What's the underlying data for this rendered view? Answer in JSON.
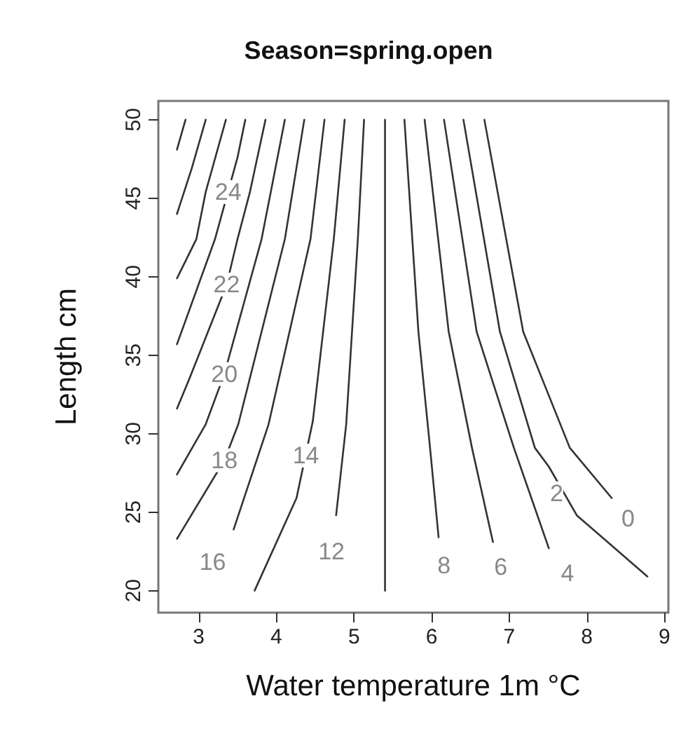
{
  "chart_data": {
    "type": "line",
    "title": "Season=spring.open",
    "xlabel": "Water temperature 1m °C",
    "ylabel": "Length cm",
    "xlim": [
      2.48,
      9.05
    ],
    "xticks": [
      3,
      4,
      5,
      6,
      7,
      8,
      9
    ],
    "ylim": [
      18.6,
      51.2
    ],
    "yticks": [
      20,
      25,
      30,
      35,
      40,
      45,
      50
    ],
    "series": [
      {
        "color": "#333333",
        "x": [
          2.83,
          2.72
        ],
        "values": [
          50,
          48.1
        ]
      },
      {
        "color": "#333333",
        "x": [
          3.09,
          2.91,
          2.72
        ],
        "values": [
          50,
          46.9,
          44.0
        ]
      },
      {
        "color": "#333333",
        "x": [
          3.35,
          3.09,
          2.97,
          2.72
        ],
        "values": [
          50,
          45.4,
          42.4,
          39.9
        ]
      },
      {
        "color": "#333333",
        "x": [
          3.6,
          3.5,
          3.21,
          2.72
        ],
        "values": [
          50,
          47.6,
          42.4,
          35.7
        ]
      },
      {
        "color": "#333333",
        "x": [
          3.86,
          3.66,
          3.5,
          3.36,
          2.88,
          2.72
        ],
        "values": [
          50,
          45.4,
          42.4,
          39.5,
          33.5,
          31.6
        ]
      },
      {
        "color": "#333333",
        "x": [
          4.11,
          3.81,
          3.33,
          3.09,
          2.72
        ],
        "values": [
          50,
          42.4,
          33.8,
          30.6,
          27.4
        ]
      },
      {
        "color": "#333333",
        "x": [
          4.36,
          4.11,
          3.51,
          3.33,
          2.72
        ],
        "values": [
          50,
          42.4,
          30.6,
          28.3,
          23.3
        ]
      },
      {
        "color": "#333333",
        "x": [
          4.62,
          4.44,
          3.9,
          3.45
        ],
        "values": [
          50,
          42.4,
          30.6,
          23.9
        ]
      },
      {
        "color": "#333333",
        "x": [
          4.88,
          4.74,
          4.47,
          4.26,
          3.72
        ],
        "values": [
          50,
          42.4,
          30.8,
          25.9,
          20
        ]
      },
      {
        "color": "#333333",
        "x": [
          5.13,
          5.05,
          4.9,
          4.77
        ],
        "values": [
          50,
          42.4,
          30.6,
          24.8
        ]
      },
      {
        "color": "#333333",
        "x": [
          5.4,
          5.4
        ],
        "values": [
          50,
          20
        ]
      },
      {
        "color": "#333333",
        "x": [
          5.65,
          5.83,
          5.98,
          6.09
        ],
        "values": [
          50,
          36.5,
          29.1,
          23.4
        ]
      },
      {
        "color": "#333333",
        "x": [
          5.91,
          6.22,
          6.52,
          6.79
        ],
        "values": [
          50,
          36.5,
          29.1,
          23.1
        ]
      },
      {
        "color": "#333333",
        "x": [
          6.16,
          6.58,
          7.06,
          7.51
        ],
        "values": [
          50,
          36.5,
          29.1,
          22.7
        ]
      },
      {
        "color": "#333333",
        "x": [
          6.41,
          6.88,
          7.33,
          7.51,
          7.87,
          8.78
        ],
        "values": [
          50,
          36.5,
          29.1,
          27.9,
          24.8,
          20.9
        ]
      },
      {
        "color": "#333333",
        "x": [
          6.68,
          7.18,
          7.78,
          8.32
        ],
        "values": [
          50,
          36.5,
          29.1,
          25.9
        ]
      }
    ],
    "annotations": [
      {
        "text": "24",
        "x": 3.38,
        "y": 45.4
      },
      {
        "text": "22",
        "x": 3.36,
        "y": 39.5
      },
      {
        "text": "20",
        "x": 3.33,
        "y": 33.8
      },
      {
        "text": "18",
        "x": 3.33,
        "y": 28.3
      },
      {
        "text": "16",
        "x": 3.18,
        "y": 21.8
      },
      {
        "text": "14",
        "x": 4.38,
        "y": 28.6
      },
      {
        "text": "12",
        "x": 4.71,
        "y": 22.5
      },
      {
        "text": "8",
        "x": 6.16,
        "y": 21.6
      },
      {
        "text": "6",
        "x": 6.89,
        "y": 21.5
      },
      {
        "text": "4",
        "x": 7.75,
        "y": 21.1
      },
      {
        "text": "2",
        "x": 7.61,
        "y": 26.2
      },
      {
        "text": "0",
        "x": 8.53,
        "y": 24.6
      }
    ]
  }
}
